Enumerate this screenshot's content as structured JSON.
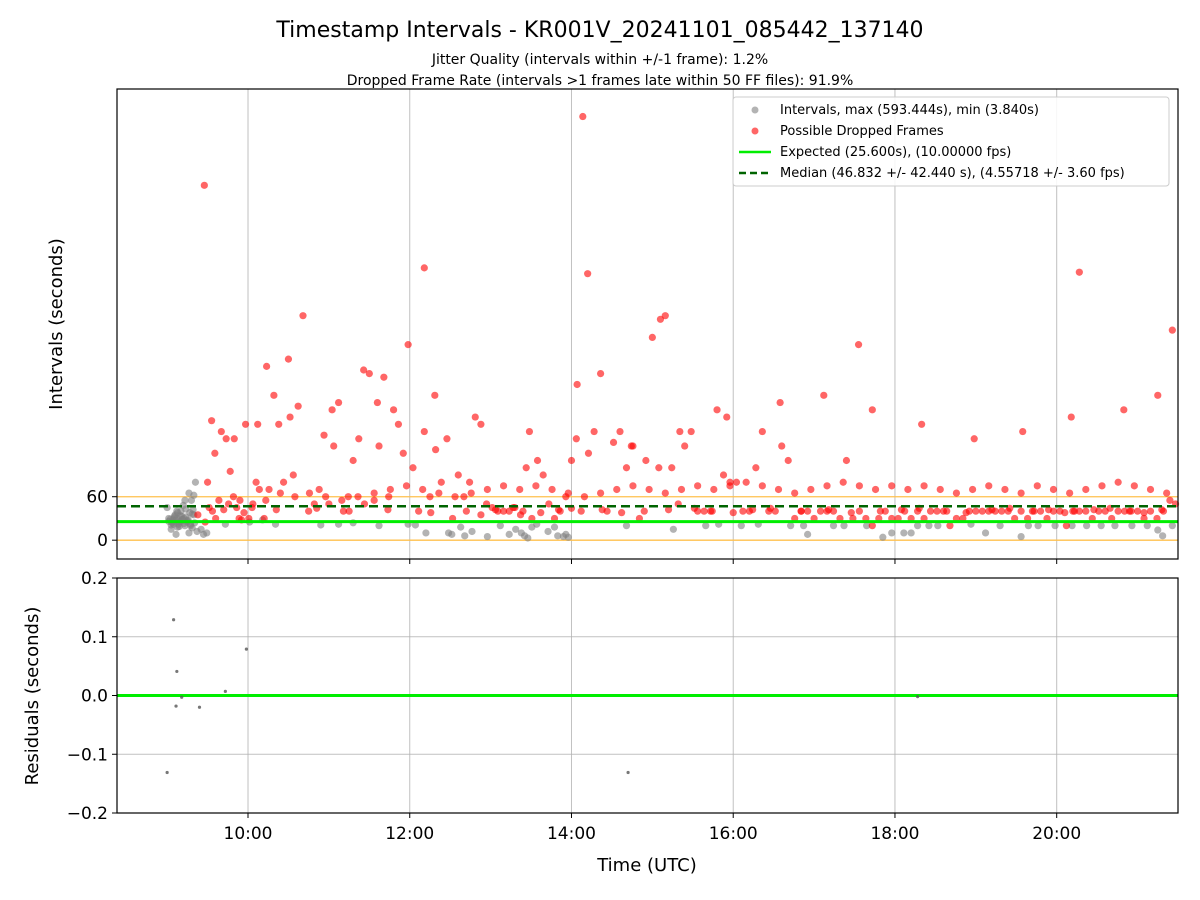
{
  "chart_data": [
    {
      "type": "scatter",
      "title": "Timestamp Intervals - KR001V_20241101_085442_137140",
      "subtitle_lines": [
        "Jitter Quality (intervals within +/-1 frame): 1.2%",
        "Dropped Frame Rate (intervals >1 frames late within 50 FF files): 91.9%"
      ],
      "xlabel": "",
      "ylabel": "Intervals (seconds)",
      "x_unit": "hours UTC",
      "xlim": [
        8.38,
        21.5
      ],
      "ylim": [
        -26,
        623
      ],
      "yticks": [
        0,
        60
      ],
      "ytick_labels": [
        "0",
        "60"
      ],
      "grid_x": true,
      "grid_y": false,
      "threshold_lines": [
        0,
        60
      ],
      "legend_position": "upper right",
      "legend_entries": [
        "Intervals, max (593.444s), min (3.840s)",
        "Possible Dropped Frames",
        "Expected (25.600s), (10.00000 fps)",
        "Median (46.832 +/- 42.440 s), (4.55718 +/- 3.60 fps)"
      ],
      "expected_value": 25.6,
      "median_value": 46.832,
      "max_interval": 593.444,
      "colors": {
        "intervals": "#808080",
        "dropped": "#ff0000",
        "expected": "#00ee00",
        "median": "#006400",
        "threshold": "#ffc04d"
      },
      "series": [
        {
          "name": "Intervals, max (593.444s), min (3.840s)",
          "x": [
            9.0,
            9.02,
            9.05,
            9.07,
            9.08,
            9.1,
            9.12,
            9.13,
            9.15,
            9.18,
            9.2,
            9.22,
            9.25,
            9.28,
            9.3,
            9.33,
            9.35,
            9.02,
            9.04,
            9.06,
            9.09,
            9.11,
            9.14,
            9.16,
            9.19,
            9.21,
            9.23,
            9.26,
            9.29,
            9.31,
            9.34,
            9.05,
            9.09,
            9.13,
            9.17,
            9.21,
            9.25,
            9.29,
            9.33,
            9.37,
            9.11,
            9.15,
            9.19,
            9.23,
            9.27,
            9.31,
            9.07,
            9.12,
            9.17,
            9.22,
            9.27,
            9.32,
            9.42,
            9.45,
            9.49,
            9.72,
            10.02,
            10.18,
            10.34,
            10.9,
            11.12,
            11.3,
            11.62,
            11.98,
            12.07,
            12.2,
            12.48,
            12.52,
            12.63,
            12.68,
            12.77,
            12.96,
            13.12,
            13.23,
            13.31,
            13.38,
            13.42,
            13.46,
            13.51,
            13.57,
            13.71,
            13.79,
            13.83,
            13.9,
            13.93,
            13.96,
            14.68,
            15.26,
            15.66,
            15.82,
            16.1,
            16.31,
            16.71,
            16.87,
            16.92,
            17.24,
            17.37,
            17.65,
            17.85,
            17.96,
            18.11,
            18.2,
            18.28,
            18.42,
            18.53,
            18.94,
            19.12,
            19.3,
            19.56,
            19.65,
            19.77,
            19.98,
            20.19,
            20.37,
            20.55,
            20.72,
            20.93,
            21.12,
            21.25,
            21.31,
            21.43
          ],
          "y": [
            45,
            30,
            15,
            28,
            22,
            35,
            40,
            18,
            25,
            33,
            48,
            20,
            27,
            38,
            55,
            62,
            80,
            26,
            29,
            24,
            31,
            27,
            22,
            34,
            29,
            23,
            32,
            28,
            20,
            36,
            24,
            21,
            33,
            38,
            26,
            30,
            25,
            22,
            35,
            12,
            8,
            19,
            28,
            43,
            10,
            17,
            25,
            30,
            40,
            55,
            65,
            42,
            15,
            8,
            10,
            22,
            25,
            28,
            22,
            21,
            22,
            24,
            20,
            22,
            21,
            10,
            10,
            8,
            18,
            6,
            12,
            5,
            20,
            8,
            15,
            10,
            6,
            3,
            18,
            22,
            12,
            18,
            6,
            5,
            8,
            4,
            20,
            15,
            20,
            22,
            20,
            22,
            20,
            20,
            8,
            20,
            20,
            20,
            4,
            10,
            10,
            10,
            20,
            20,
            20,
            22,
            10,
            20,
            5,
            20,
            20,
            20,
            20,
            20,
            20,
            20,
            20,
            20,
            14,
            6,
            20
          ]
        },
        {
          "name": "Possible Dropped Frames",
          "x": [
            9.47,
            9.5,
            9.55,
            9.6,
            9.67,
            9.73,
            9.78,
            9.82,
            9.86,
            9.89,
            9.92,
            9.97,
            10.01,
            10.05,
            10.1,
            10.14,
            10.2,
            10.26,
            10.32,
            10.38,
            10.44,
            10.5,
            10.56,
            10.62,
            10.68,
            10.75,
            10.82,
            10.88,
            10.94,
            11.0,
            11.06,
            11.12,
            11.18,
            11.24,
            11.3,
            11.37,
            11.44,
            11.5,
            11.56,
            11.62,
            11.68,
            11.74,
            11.8,
            11.86,
            11.92,
            11.98,
            12.04,
            12.11,
            12.18,
            12.25,
            12.32,
            12.39,
            12.46,
            12.53,
            12.6,
            12.67,
            12.74,
            12.81,
            12.88,
            12.95,
            13.02,
            13.09,
            13.16,
            13.23,
            13.3,
            13.37,
            13.44,
            13.51,
            13.58,
            13.65,
            13.72,
            13.79,
            13.86,
            13.93,
            14.0,
            14.07,
            14.14,
            14.21,
            14.28,
            14.36,
            14.44,
            14.52,
            14.6,
            14.68,
            14.76,
            14.84,
            14.92,
            15.0,
            15.08,
            15.16,
            15.24,
            15.32,
            15.4,
            15.48,
            15.56,
            15.64,
            15.72,
            15.8,
            15.88,
            15.96,
            16.04,
            16.12,
            16.2,
            16.28,
            16.36,
            16.44,
            16.52,
            16.6,
            16.68,
            16.76,
            16.84,
            16.92,
            17.0,
            17.08,
            17.16,
            17.24,
            17.32,
            17.4,
            17.48,
            17.56,
            17.64,
            17.72,
            17.8,
            17.88,
            17.96,
            18.04,
            18.12,
            18.2,
            18.28,
            18.36,
            18.44,
            18.52,
            18.6,
            18.68,
            18.76,
            18.84,
            18.92,
            19.0,
            19.08,
            19.16,
            19.24,
            19.32,
            19.4,
            19.48,
            19.56,
            19.64,
            19.72,
            19.8,
            19.88,
            19.96,
            20.04,
            20.12,
            20.2,
            20.28,
            20.36,
            20.44,
            20.52,
            20.6,
            20.68,
            20.76,
            20.84,
            20.92,
            21.0,
            21.08,
            21.16,
            21.24,
            21.32,
            21.4,
            21.47,
            9.52,
            9.64,
            9.76,
            9.9,
            10.06,
            10.22,
            10.4,
            10.58,
            10.76,
            10.96,
            11.16,
            11.36,
            11.56,
            11.76,
            11.96,
            12.16,
            12.36,
            12.56,
            12.76,
            12.96,
            13.16,
            13.36,
            13.56,
            13.76,
            13.96,
            14.16,
            14.36,
            14.56,
            14.76,
            14.96,
            15.16,
            15.36,
            15.56,
            15.76,
            15.96,
            16.16,
            16.36,
            16.56,
            16.76,
            16.96,
            17.16,
            17.36,
            17.56,
            17.76,
            17.96,
            18.16,
            18.36,
            18.56,
            18.76,
            18.96,
            19.16,
            19.36,
            19.56,
            19.76,
            19.96,
            20.16,
            20.36,
            20.56,
            20.76,
            20.96,
            21.16,
            21.36,
            9.46,
            10.23,
            11.43,
            12.18,
            14.2,
            15.1,
            17.55,
            20.28,
            21.43,
            9.59,
            9.83,
            10.12,
            10.52,
            11.04,
            11.6,
            12.31,
            12.88,
            13.48,
            14.06,
            14.74,
            15.34,
            15.92,
            16.58,
            17.12,
            17.72,
            18.33,
            18.98,
            19.58,
            20.18,
            20.83,
            21.25,
            9.38,
            9.56,
            9.7,
            9.95,
            10.35,
            10.85,
            11.25,
            11.73,
            12.26,
            12.7,
            13.06,
            13.28,
            13.4,
            13.62,
            13.84,
            14.0,
            14.12,
            14.38,
            14.62,
            14.9,
            15.2,
            15.52,
            15.74,
            16.0,
            16.24,
            16.46,
            16.84,
            17.18,
            17.46,
            17.82,
            18.08,
            18.3,
            18.64,
            18.88,
            19.2,
            19.42,
            19.7,
            19.9,
            20.1,
            20.22,
            20.46,
            20.66,
            20.9,
            21.08,
            21.3
          ],
          "y": [
            25,
            80,
            165,
            30,
            150,
            140,
            95,
            60,
            45,
            30,
            28,
            160,
            30,
            45,
            80,
            70,
            30,
            70,
            200,
            160,
            80,
            250,
            90,
            185,
            310,
            40,
            50,
            70,
            145,
            50,
            130,
            190,
            40,
            60,
            110,
            140,
            50,
            230,
            55,
            130,
            225,
            60,
            180,
            160,
            120,
            270,
            100,
            40,
            150,
            60,
            125,
            80,
            140,
            30,
            90,
            60,
            80,
            170,
            35,
            50,
            45,
            40,
            40,
            40,
            45,
            35,
            100,
            30,
            110,
            90,
            50,
            30,
            40,
            60,
            110,
            215,
            585,
            120,
            150,
            230,
            40,
            135,
            150,
            100,
            130,
            30,
            110,
            280,
            100,
            310,
            100,
            50,
            130,
            150,
            40,
            40,
            40,
            180,
            90,
            80,
            80,
            40,
            40,
            100,
            150,
            40,
            40,
            130,
            110,
            30,
            40,
            40,
            30,
            40,
            40,
            40,
            30,
            110,
            30,
            40,
            30,
            20,
            30,
            40,
            30,
            30,
            40,
            30,
            40,
            30,
            40,
            40,
            40,
            20,
            30,
            30,
            40,
            40,
            40,
            40,
            40,
            40,
            40,
            30,
            40,
            30,
            40,
            40,
            30,
            40,
            40,
            20,
            40,
            40,
            40,
            30,
            40,
            40,
            30,
            40,
            40,
            40,
            40,
            30,
            40,
            30,
            40,
            55,
            50,
            45,
            55,
            50,
            55,
            50,
            55,
            65,
            60,
            65,
            60,
            55,
            60,
            65,
            70,
            75,
            70,
            65,
            60,
            65,
            70,
            75,
            70,
            75,
            70,
            65,
            60,
            65,
            70,
            75,
            70,
            65,
            70,
            75,
            70,
            75,
            80,
            75,
            70,
            65,
            70,
            75,
            80,
            75,
            70,
            75,
            70,
            75,
            70,
            65,
            70,
            75,
            70,
            65,
            75,
            70,
            65,
            70,
            75,
            80,
            75,
            70,
            65,
            490,
            240,
            235,
            376,
            368,
            305,
            270,
            370,
            290,
            120,
            140,
            160,
            170,
            180,
            190,
            200,
            160,
            150,
            140,
            130,
            150,
            170,
            190,
            200,
            180,
            160,
            140,
            150,
            170,
            180,
            200,
            35,
            40,
            42,
            38,
            42,
            44,
            40,
            42,
            38,
            40,
            42,
            45,
            40,
            38,
            42,
            44,
            40,
            42,
            38,
            40,
            42,
            44,
            40,
            38,
            42,
            44,
            40,
            42,
            38,
            40,
            42,
            44,
            40,
            38,
            42,
            44,
            40,
            42,
            38,
            40,
            42,
            44,
            40,
            38,
            42
          ]
        }
      ]
    },
    {
      "type": "scatter",
      "xlabel": "Time (UTC)",
      "ylabel": "Residuals (seconds)",
      "xlim": [
        8.38,
        21.5
      ],
      "ylim": [
        -0.2,
        0.2
      ],
      "yticks": [
        -0.2,
        -0.1,
        0.0,
        0.1,
        0.2
      ],
      "ytick_labels": [
        "−0.2",
        "−0.1",
        "0.0",
        "0.1",
        "0.2"
      ],
      "xticks": [
        10,
        12,
        14,
        16,
        18,
        20
      ],
      "xtick_labels": [
        "10:00",
        "12:00",
        "14:00",
        "16:00",
        "18:00",
        "20:00"
      ],
      "grid_x": true,
      "grid_y": true,
      "zero_line": 0.0,
      "series": [
        {
          "x": [
            9.08,
            9.12,
            9.11,
            9.18,
            9.4,
            9.72,
            9.98,
            9.0,
            14.7,
            18.28
          ],
          "y": [
            0.129,
            0.041,
            -0.018,
            -0.003,
            -0.02,
            0.007,
            0.079,
            -0.131,
            -0.131,
            -0.002
          ]
        }
      ]
    }
  ]
}
